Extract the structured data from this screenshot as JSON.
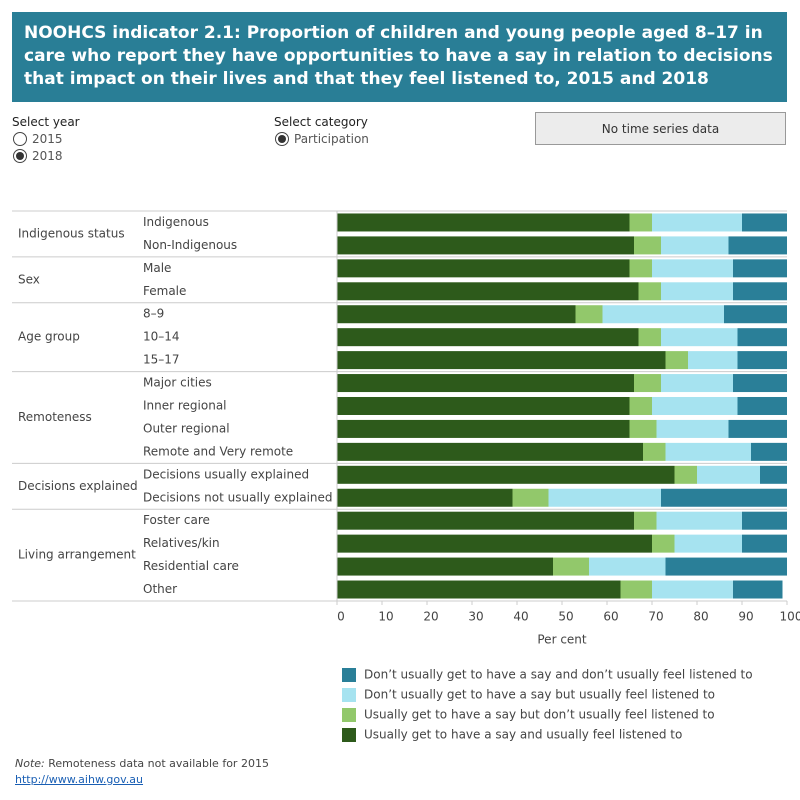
{
  "header": {
    "title": "NOOHCS indicator 2.1: Proportion of children and young people aged 8–17 in care who report they have opportunities to have a say in relation to decisions that impact on their lives and that they feel listened to, 2015 and 2018"
  },
  "controls": {
    "year_label": "Select year",
    "years": [
      "2015",
      "2018"
    ],
    "category_label": "Select category",
    "categories": [
      "Participation"
    ],
    "button": "No time series data"
  },
  "chart_data": {
    "type": "stacked-bar-horizontal",
    "category_groups": [
      {
        "name": "Indigenous status",
        "categories": [
          "Indigenous",
          "Non-Indigenous"
        ]
      },
      {
        "name": "Sex",
        "categories": [
          "Male",
          "Female"
        ]
      },
      {
        "name": "Age group",
        "categories": [
          "8–9",
          "10–14",
          "15–17"
        ]
      },
      {
        "name": "Remoteness",
        "categories": [
          "Major cities",
          "Inner regional",
          "Outer regional",
          "Remote and Very remote"
        ]
      },
      {
        "name": "Decisions explained",
        "categories": [
          "Decisions usually explained",
          "Decisions not usually explained"
        ]
      },
      {
        "name": "Living arrangement",
        "categories": [
          "Foster care",
          "Relatives/kin",
          "Residential care",
          "Other"
        ]
      }
    ],
    "series": [
      {
        "name": "Don’t usually get to have a say and don’t usually feel listened to",
        "color": "#2a7f98",
        "values": [
          10,
          13,
          12,
          12,
          14,
          11,
          11,
          12,
          11,
          13,
          8,
          6,
          28,
          10,
          10,
          27,
          11
        ]
      },
      {
        "name": "Don’t usually get to have a say but usually feel listened to",
        "color": "#a6e3f0",
        "values": [
          20,
          15,
          18,
          16,
          27,
          17,
          11,
          16,
          19,
          16,
          19,
          14,
          25,
          19,
          15,
          17,
          18
        ]
      },
      {
        "name": "Usually get to have a say but don’t usually feel listened to",
        "color": "#92c86b",
        "values": [
          5,
          6,
          5,
          5,
          6,
          5,
          5,
          6,
          5,
          6,
          5,
          5,
          8,
          5,
          5,
          8,
          7
        ]
      },
      {
        "name": "Usually get to have a say and usually feel listened to",
        "color": "#2d5a1b",
        "values": [
          65,
          66,
          65,
          67,
          53,
          67,
          73,
          66,
          65,
          65,
          68,
          75,
          39,
          66,
          70,
          48,
          63
        ]
      }
    ],
    "xlabel": "Per cent",
    "xlim": [
      0,
      100
    ],
    "xticks": [
      0,
      10,
      20,
      30,
      40,
      50,
      60,
      70,
      80,
      90,
      100
    ]
  },
  "footer": {
    "note_label": "Note:",
    "note": "Remoteness data not available for 2015",
    "link": "http://www.aihw.gov.au"
  }
}
